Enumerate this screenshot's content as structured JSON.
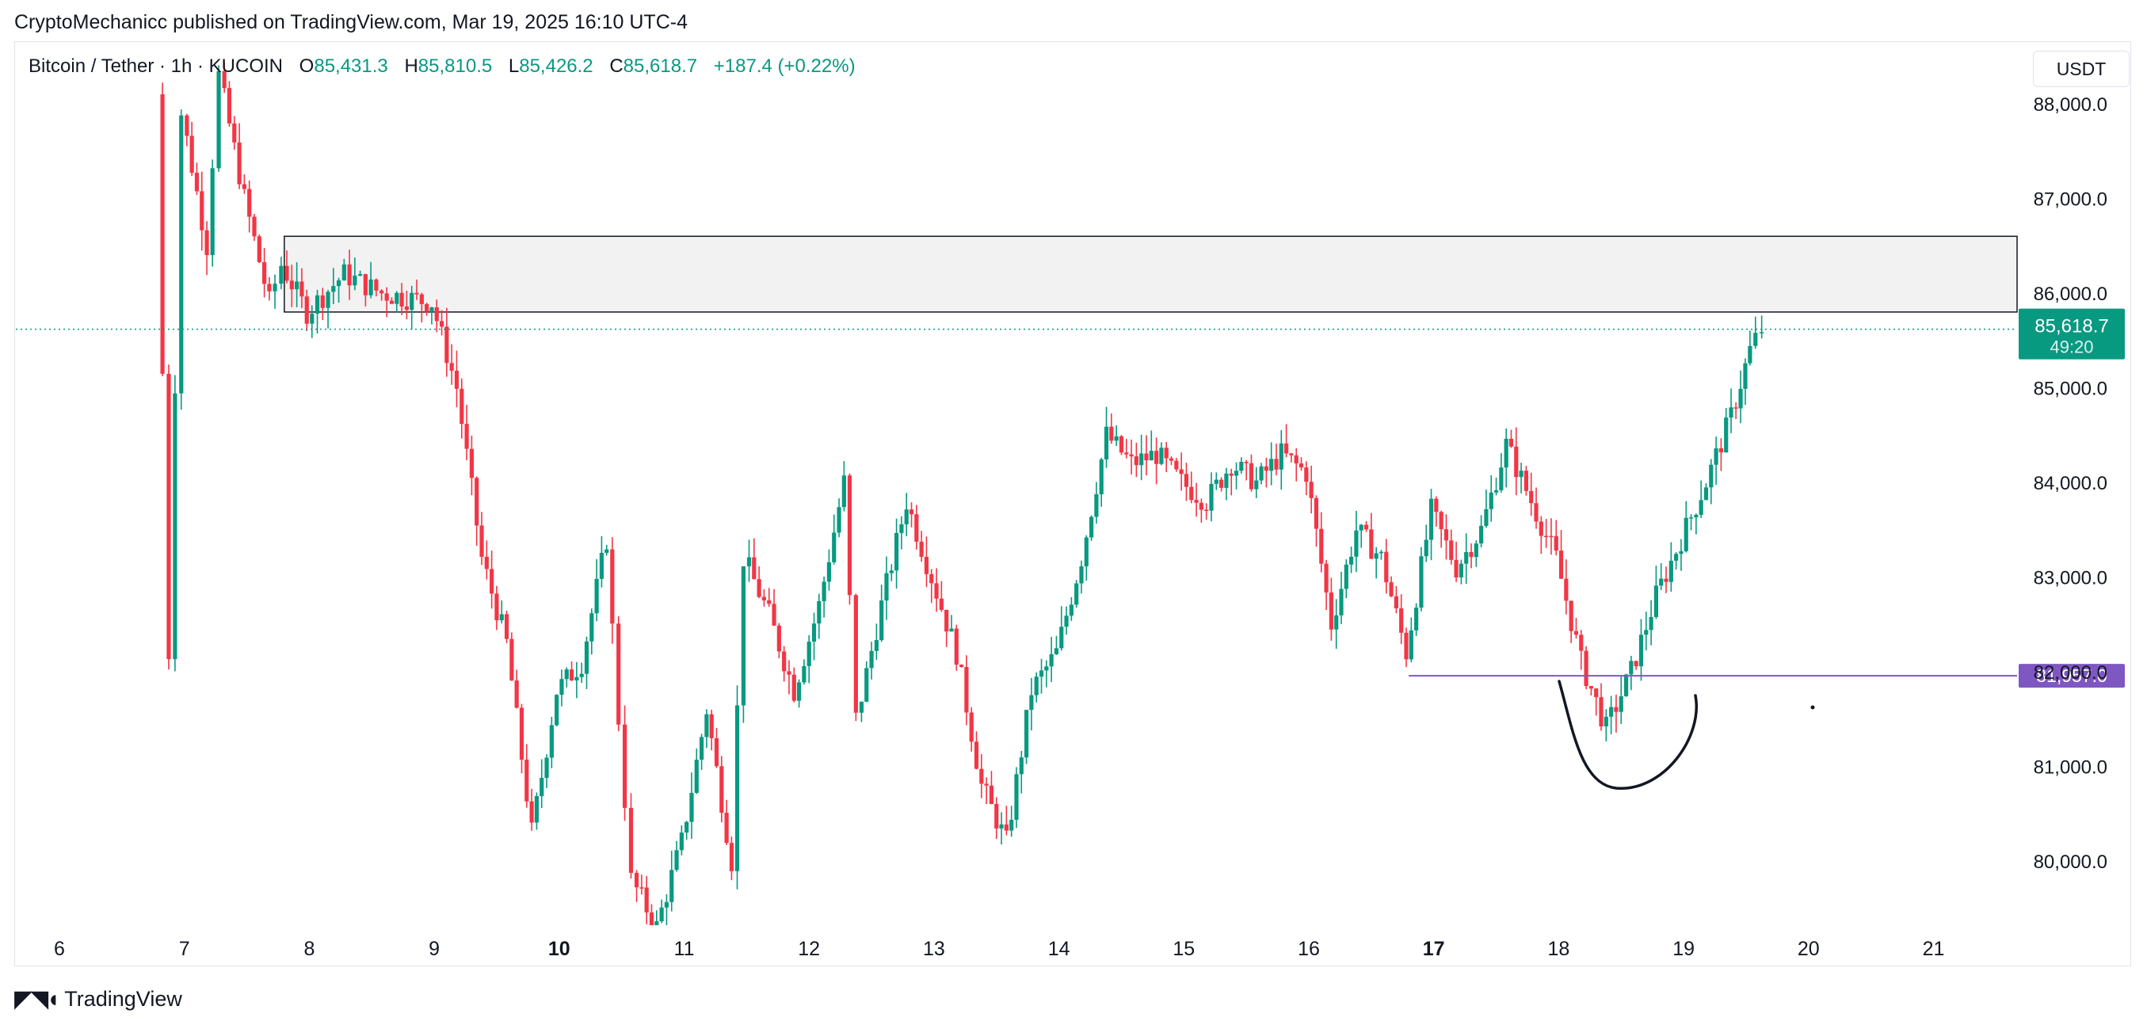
{
  "header": {
    "publish_line": "CryptoMechanicc published on TradingView.com, Mar 19, 2025 16:10 UTC-4"
  },
  "legend": {
    "symbol": "Bitcoin / Tether · 1h · KUCOIN",
    "open_label": "O",
    "open": "85,431.3",
    "high_label": "H",
    "high": "85,810.5",
    "low_label": "L",
    "low": "85,426.2",
    "close_label": "C",
    "close": "85,618.7",
    "change": "+187.4 (+0.22%)"
  },
  "currency_button": "USDT",
  "footer": {
    "logo_icon": "tradingview-logo-icon",
    "brand": "TradingView"
  },
  "colors": {
    "up": "#089981",
    "down": "#f23645",
    "zone": "#f2f2f2",
    "level": "#7e57c2",
    "price_tag": "#089981"
  },
  "chart_data": {
    "type": "candlestick",
    "ylim": [
      79300,
      88800
    ],
    "y_ticks": [
      {
        "value": 80000,
        "label": "80,000.0"
      },
      {
        "value": 81000,
        "label": "81,000.0"
      },
      {
        "value": 82000,
        "label": "82,000.0"
      },
      {
        "value": 83000,
        "label": "83,000.0"
      },
      {
        "value": 84000,
        "label": "84,000.0"
      },
      {
        "value": 85000,
        "label": "85,000.0"
      },
      {
        "value": 86000,
        "label": "86,000.0"
      },
      {
        "value": 87000,
        "label": "87,000.0"
      },
      {
        "value": 88000,
        "label": "88,000.0"
      }
    ],
    "x_ticks": [
      {
        "day": 6,
        "label": "6",
        "bold": false
      },
      {
        "day": 7,
        "label": "7",
        "bold": false
      },
      {
        "day": 8,
        "label": "8",
        "bold": false
      },
      {
        "day": 9,
        "label": "9",
        "bold": false
      },
      {
        "day": 10,
        "label": "10",
        "bold": true
      },
      {
        "day": 11,
        "label": "11",
        "bold": false
      },
      {
        "day": 12,
        "label": "12",
        "bold": false
      },
      {
        "day": 13,
        "label": "13",
        "bold": false
      },
      {
        "day": 14,
        "label": "14",
        "bold": false
      },
      {
        "day": 15,
        "label": "15",
        "bold": false
      },
      {
        "day": 16,
        "label": "16",
        "bold": false
      },
      {
        "day": 17,
        "label": "17",
        "bold": true
      },
      {
        "day": 18,
        "label": "18",
        "bold": false
      },
      {
        "day": 19,
        "label": "19",
        "bold": false
      },
      {
        "day": 20,
        "label": "20",
        "bold": false
      },
      {
        "day": 21,
        "label": "21",
        "bold": false
      }
    ],
    "path": [
      [
        6.8,
        88100
      ],
      [
        6.9,
        82200
      ],
      [
        7.0,
        87900
      ],
      [
        7.2,
        86500
      ],
      [
        7.3,
        88300
      ],
      [
        7.5,
        87000
      ],
      [
        7.7,
        85900
      ],
      [
        7.8,
        86300
      ],
      [
        8.0,
        85800
      ],
      [
        8.3,
        86200
      ],
      [
        8.6,
        86000
      ],
      [
        9.0,
        85900
      ],
      [
        9.2,
        85000
      ],
      [
        9.4,
        83200
      ],
      [
        9.6,
        82300
      ],
      [
        9.8,
        80300
      ],
      [
        10.0,
        81800
      ],
      [
        10.2,
        82100
      ],
      [
        10.4,
        83400
      ],
      [
        10.5,
        81500
      ],
      [
        10.6,
        79800
      ],
      [
        10.8,
        79300
      ],
      [
        11.0,
        80200
      ],
      [
        11.2,
        81600
      ],
      [
        11.4,
        80000
      ],
      [
        11.5,
        83200
      ],
      [
        11.7,
        82600
      ],
      [
        11.9,
        81800
      ],
      [
        12.1,
        82700
      ],
      [
        12.3,
        84000
      ],
      [
        12.4,
        81500
      ],
      [
        12.6,
        82700
      ],
      [
        12.8,
        83800
      ],
      [
        13.0,
        83000
      ],
      [
        13.2,
        82200
      ],
      [
        13.4,
        80800
      ],
      [
        13.6,
        80200
      ],
      [
        13.8,
        81800
      ],
      [
        14.0,
        82200
      ],
      [
        14.2,
        83200
      ],
      [
        14.4,
        84500
      ],
      [
        14.6,
        84200
      ],
      [
        14.8,
        84300
      ],
      [
        15.0,
        84000
      ],
      [
        15.2,
        83800
      ],
      [
        15.4,
        84200
      ],
      [
        15.6,
        84000
      ],
      [
        15.8,
        84300
      ],
      [
        16.0,
        84100
      ],
      [
        16.2,
        82500
      ],
      [
        16.4,
        83500
      ],
      [
        16.6,
        83200
      ],
      [
        16.8,
        82200
      ],
      [
        17.0,
        83700
      ],
      [
        17.2,
        83100
      ],
      [
        17.4,
        83500
      ],
      [
        17.6,
        84400
      ],
      [
        17.8,
        83800
      ],
      [
        18.0,
        83200
      ],
      [
        18.2,
        82100
      ],
      [
        18.4,
        81400
      ],
      [
        18.6,
        82000
      ],
      [
        18.8,
        82800
      ],
      [
        19.0,
        83400
      ],
      [
        19.2,
        84000
      ],
      [
        19.4,
        84700
      ],
      [
        19.55,
        85400
      ],
      [
        19.65,
        85618
      ]
    ],
    "resistance_zone": {
      "from_day": 7.8,
      "bottom": 85800,
      "top": 86600
    },
    "support_level": {
      "from_day": 16.8,
      "value": 81957,
      "label": "81,957.0"
    },
    "last_price": {
      "value": 85618.7,
      "label": "85,618.7",
      "countdown": "49:20"
    },
    "drawing": "hand-drawn-curve-under-support"
  }
}
